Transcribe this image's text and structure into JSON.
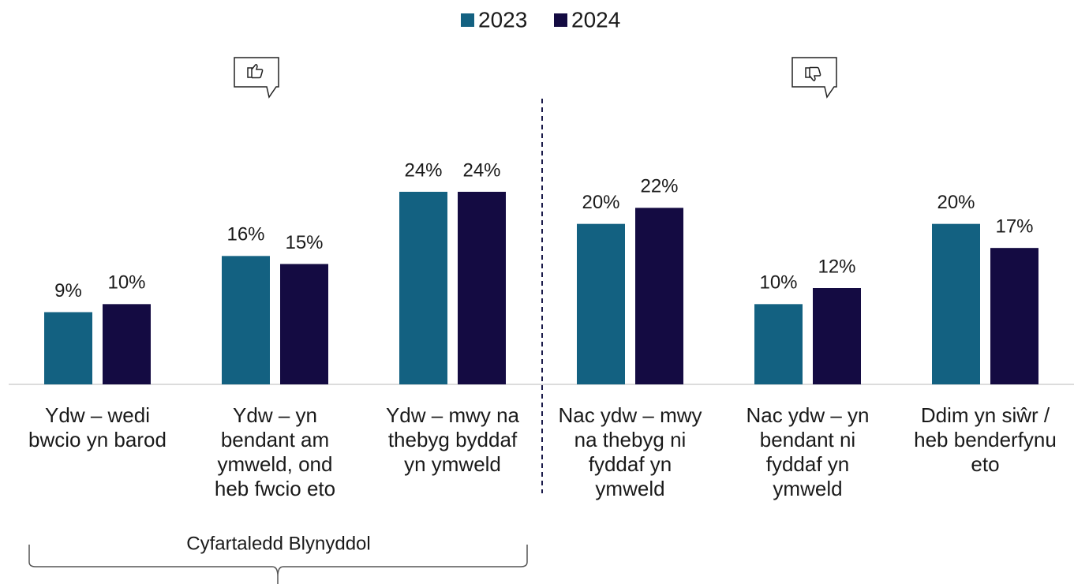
{
  "chart_data": {
    "type": "bar",
    "categories": [
      "Ydw – wedi\nbwcio yn barod",
      "Ydw – yn\nbendant am\nymweld, ond\nheb fwcio eto",
      "Ydw – mwy na\nthebyg byddaf\nyn ymweld",
      "Nac ydw – mwy\nna thebyg ni\nfyddaf yn\nymweld",
      "Nac ydw – yn\nbendant ni\nfyddaf yn\nymweld",
      "Ddim yn siŵr /\nheb benderfynu\neto"
    ],
    "series": [
      {
        "name": "2023",
        "color": "#136181",
        "values": [
          9,
          16,
          24,
          20,
          10,
          20
        ],
        "value_labels": [
          "9%",
          "16%",
          "24%",
          "20%",
          "10%",
          "20%"
        ]
      },
      {
        "name": "2024",
        "color": "#140b42",
        "values": [
          10,
          15,
          24,
          22,
          12,
          17
        ],
        "value_labels": [
          "10%",
          "15%",
          "24%",
          "22%",
          "12%",
          "17%"
        ]
      }
    ],
    "legend": "top",
    "annotation": "Cyfartaledd Blynyddol"
  }
}
